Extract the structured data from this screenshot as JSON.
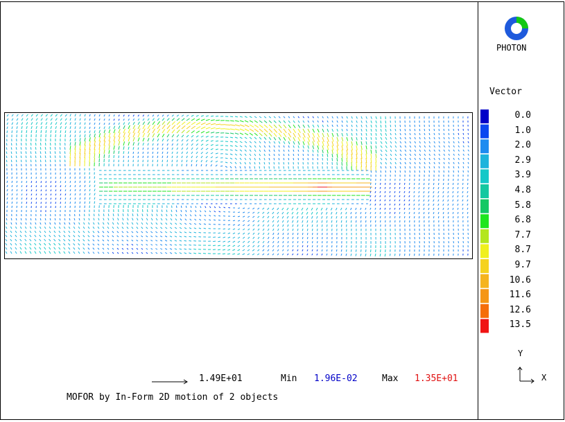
{
  "logo": {
    "name": "photon-logo-icon",
    "label": "PHOTON"
  },
  "legend": {
    "title": "Vector",
    "entries": [
      {
        "value": "0.0",
        "color": "#0000c8"
      },
      {
        "value": "1.0",
        "color": "#0a46f0"
      },
      {
        "value": "2.0",
        "color": "#1e8cf0"
      },
      {
        "value": "2.9",
        "color": "#1eb4dc"
      },
      {
        "value": "3.9",
        "color": "#14c8c8"
      },
      {
        "value": "4.8",
        "color": "#14c8a0"
      },
      {
        "value": "5.8",
        "color": "#14c864"
      },
      {
        "value": "6.8",
        "color": "#1ee61e"
      },
      {
        "value": "7.7",
        "color": "#b4e61e"
      },
      {
        "value": "8.7",
        "color": "#f0f01e"
      },
      {
        "value": "9.7",
        "color": "#f5d21e"
      },
      {
        "value": "10.6",
        "color": "#f5b41e"
      },
      {
        "value": "11.6",
        "color": "#f59614"
      },
      {
        "value": "12.6",
        "color": "#f56e0a"
      },
      {
        "value": "13.5",
        "color": "#f01414"
      }
    ]
  },
  "footer": {
    "reference_vector": "1.49E+01",
    "min_label": "Min",
    "min_value": "1.96E-02",
    "min_color": "#0000c8",
    "max_label": "Max",
    "max_value": "1.35E+01",
    "max_color": "#e01010",
    "description": "MOFOR by In-Form  2D motion of 2 objects"
  },
  "axes": {
    "y": "Y",
    "x": "X"
  }
}
